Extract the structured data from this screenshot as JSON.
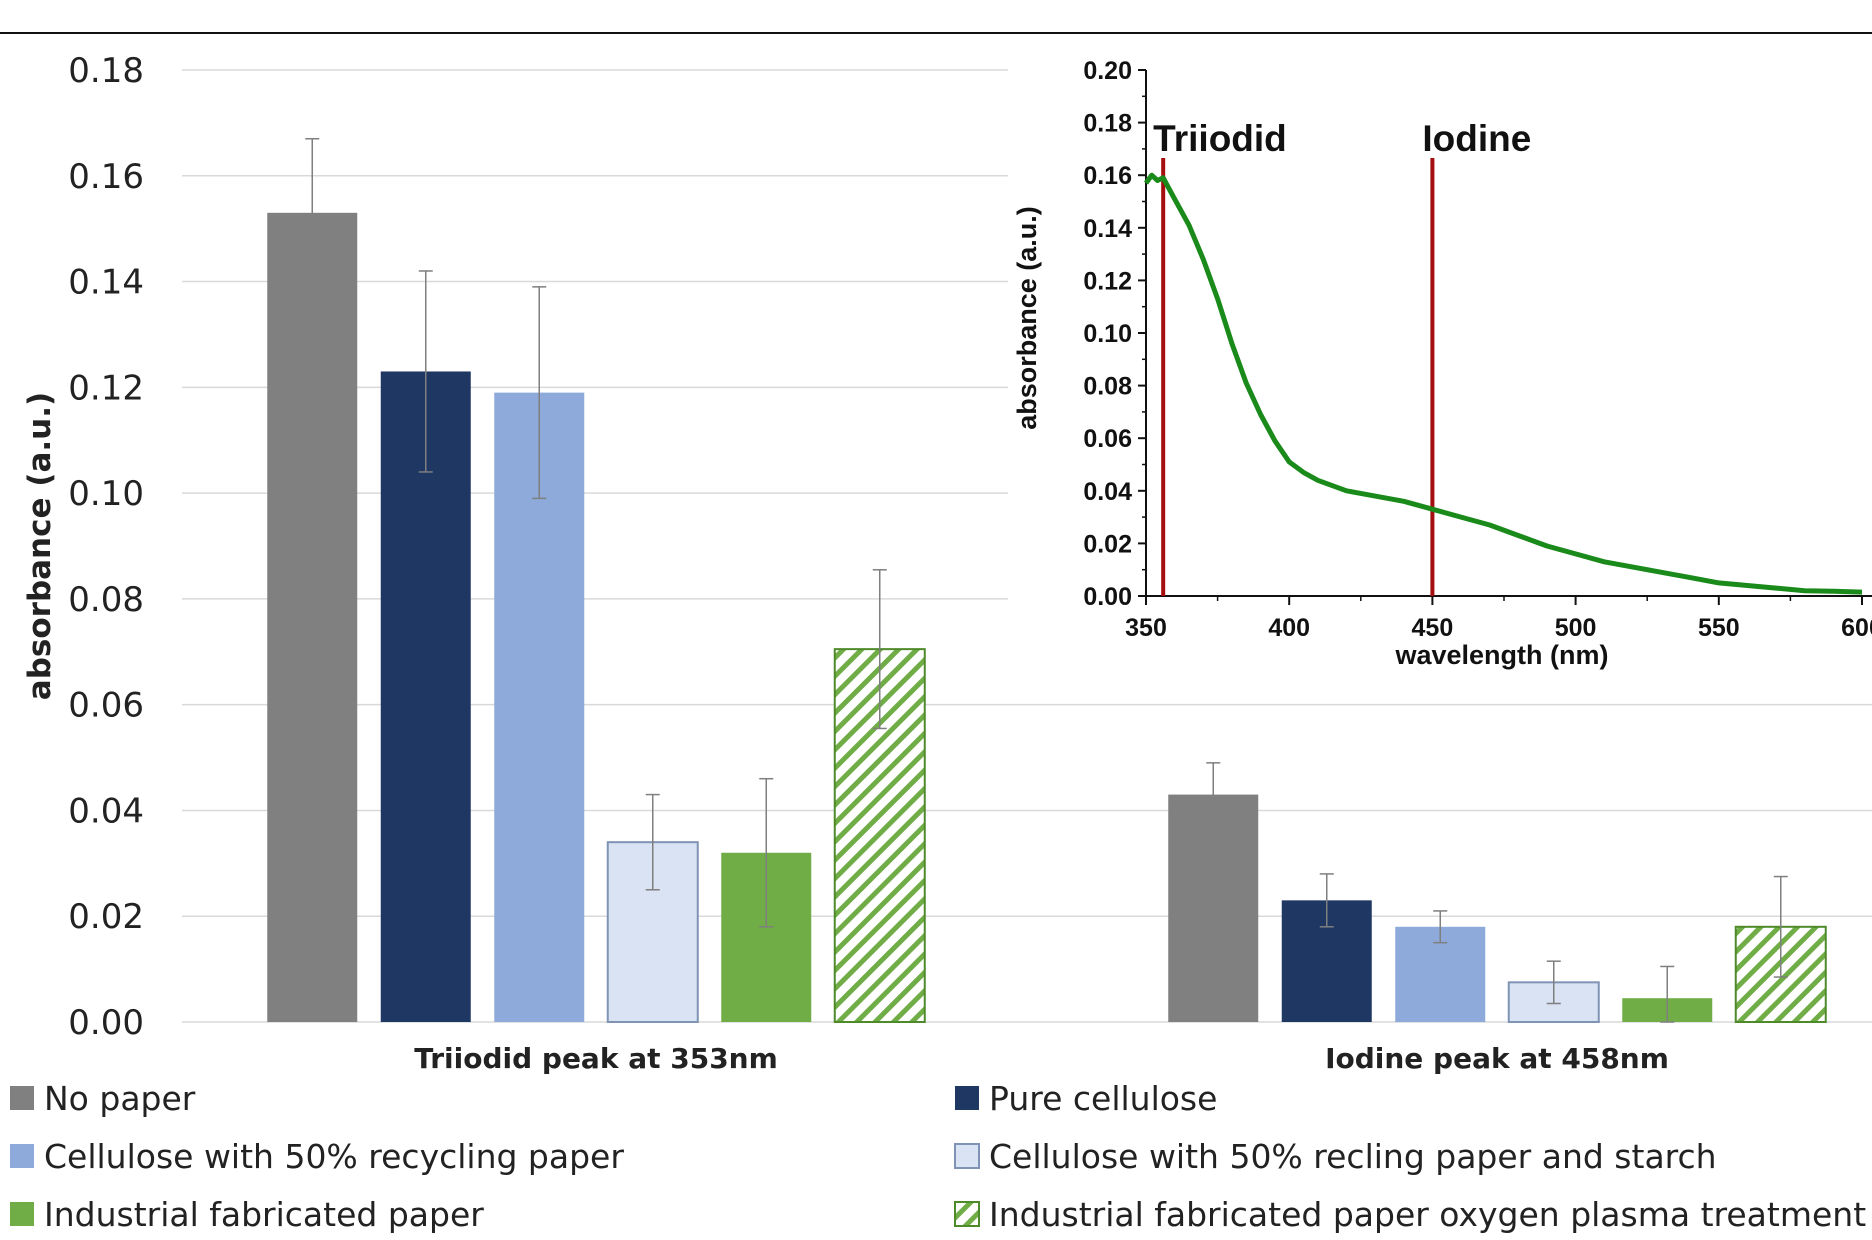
{
  "chart_data": [
    {
      "type": "bar",
      "categories": [
        "Triiodid peak at 353nm",
        "Iodine peak at 458nm"
      ],
      "ylabel": "absorbance (a.u.)",
      "ylim": [
        0,
        0.18
      ],
      "yticks": [
        "0.00",
        "0.02",
        "0.04",
        "0.06",
        "0.08",
        "0.10",
        "0.12",
        "0.14",
        "0.16",
        "0.18"
      ],
      "grid": true,
      "legend_position": "bottom",
      "series": [
        {
          "name": "No paper",
          "color": "#808080",
          "pattern": "solid",
          "values": [
            0.153,
            0.043
          ],
          "errors": [
            0.014,
            0.006
          ]
        },
        {
          "name": "Pure cellulose",
          "color": "#1f3763",
          "pattern": "solid",
          "values": [
            0.123,
            0.023
          ],
          "errors": [
            0.019,
            0.005
          ]
        },
        {
          "name": "Cellulose with 50% recycling paper",
          "color": "#8eaadb",
          "pattern": "solid",
          "values": [
            0.119,
            0.018
          ],
          "errors": [
            0.02,
            0.003
          ]
        },
        {
          "name": "Cellulose with 50% recling paper and starch",
          "color": "#dae3f3",
          "pattern": "solid",
          "values": [
            0.034,
            0.0075
          ],
          "errors": [
            0.009,
            0.004
          ]
        },
        {
          "name": "Industrial fabricated paper",
          "color": "#70ad47",
          "pattern": "solid",
          "values": [
            0.032,
            0.0045
          ],
          "errors": [
            0.014,
            0.006
          ]
        },
        {
          "name": "Industrial fabricated paper oxygen plasma treatment",
          "color": "#70ad47",
          "pattern": "hatch",
          "values": [
            0.0705,
            0.018
          ],
          "errors": [
            0.015,
            0.0095
          ]
        }
      ]
    },
    {
      "type": "line",
      "xlabel": "wavelength (nm)",
      "ylabel": "absorbance (a.u.)",
      "xlim": [
        350,
        600
      ],
      "ylim": [
        0,
        0.2
      ],
      "xticks": [
        "350",
        "400",
        "450",
        "500",
        "550",
        "600"
      ],
      "yticks": [
        "0.00",
        "0.02",
        "0.04",
        "0.06",
        "0.08",
        "0.10",
        "0.12",
        "0.14",
        "0.16",
        "0.18",
        "0.20"
      ],
      "grid": false,
      "line_color": "#1a8a1a",
      "marker_color": "#a50e0e",
      "annotations": [
        {
          "label": "Triiodid",
          "x": 356
        },
        {
          "label": "Iodine",
          "x": 450
        }
      ],
      "x": [
        350,
        352,
        354,
        356,
        358,
        360,
        365,
        370,
        375,
        380,
        385,
        390,
        395,
        400,
        405,
        410,
        420,
        430,
        440,
        450,
        460,
        470,
        480,
        490,
        500,
        510,
        520,
        530,
        540,
        550,
        560,
        570,
        580,
        590,
        600
      ],
      "y": [
        0.157,
        0.16,
        0.158,
        0.159,
        0.155,
        0.151,
        0.141,
        0.128,
        0.113,
        0.096,
        0.081,
        0.069,
        0.059,
        0.051,
        0.047,
        0.044,
        0.04,
        0.038,
        0.036,
        0.033,
        0.03,
        0.027,
        0.023,
        0.019,
        0.016,
        0.013,
        0.011,
        0.009,
        0.007,
        0.005,
        0.004,
        0.003,
        0.002,
        0.0018,
        0.0015
      ]
    }
  ]
}
